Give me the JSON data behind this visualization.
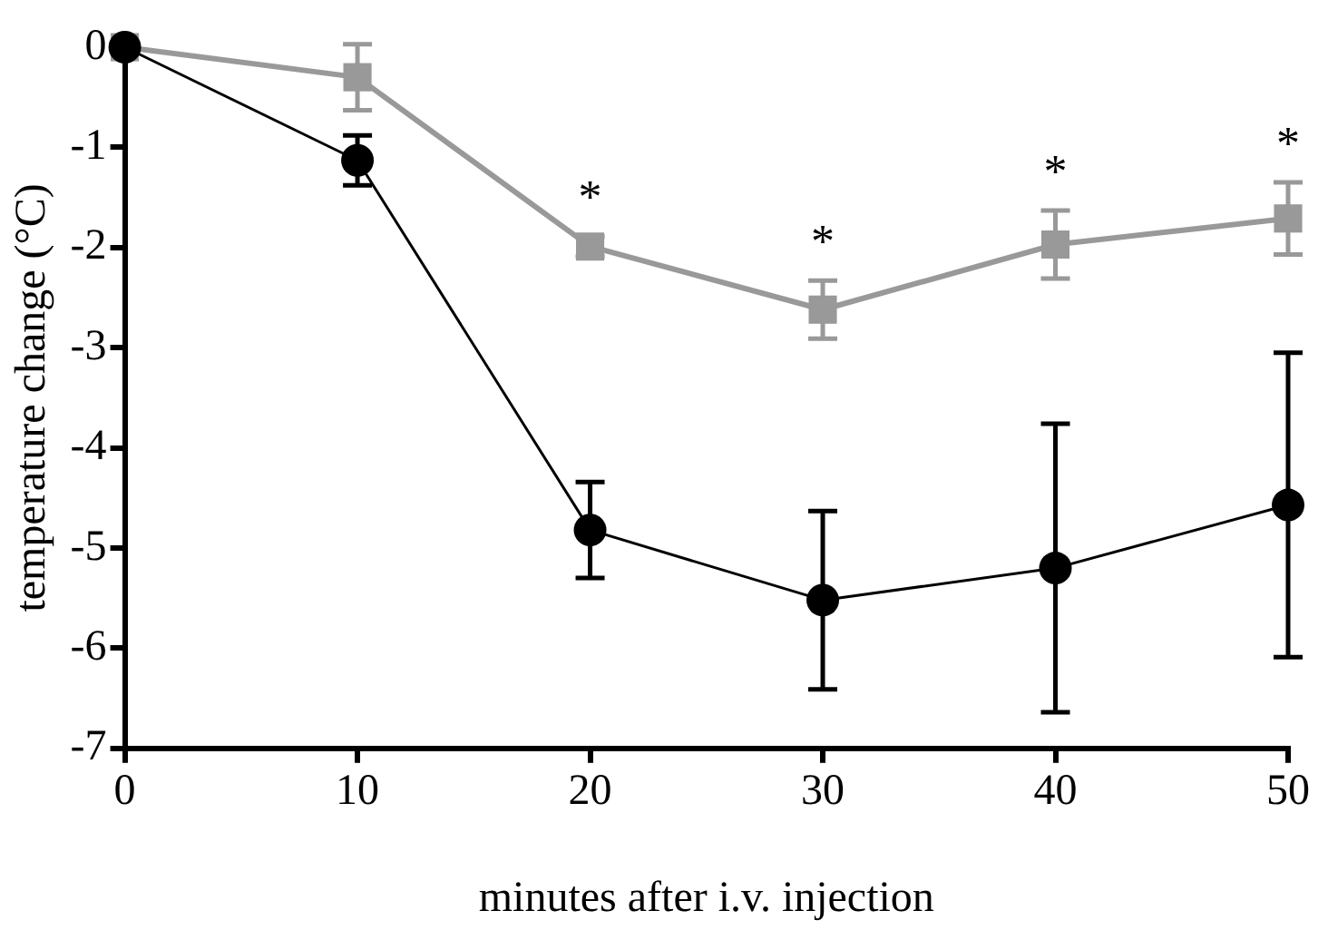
{
  "chart_data": {
    "type": "line",
    "xlabel": "minutes after i.v. injection",
    "ylabel": "temperature change (°C)",
    "x": [
      0,
      10,
      20,
      30,
      40,
      50
    ],
    "xlim": [
      0,
      50
    ],
    "xticks": [
      0,
      10,
      20,
      30,
      40,
      50
    ],
    "ylim": [
      -7,
      0
    ],
    "yticks": [
      -7,
      -6,
      -5,
      -4,
      -3,
      -2,
      -1,
      0
    ],
    "grid": false,
    "legend": false,
    "series": [
      {
        "color": "#999999",
        "marker": "square",
        "values": [
          0,
          -0.3,
          -1.99,
          -2.62,
          -1.97,
          -1.71
        ],
        "errors": [
          null,
          0.33,
          0.1,
          0.29,
          0.34,
          0.36
        ]
      },
      {
        "color": "#000000",
        "marker": "circle",
        "values": [
          0,
          -1.13,
          -4.82,
          -5.52,
          -5.2,
          -4.57
        ],
        "errors": [
          null,
          0.25,
          0.48,
          0.89,
          1.44,
          1.52
        ]
      }
    ],
    "annotations": [
      "*",
      "*",
      "*",
      "*"
    ]
  }
}
